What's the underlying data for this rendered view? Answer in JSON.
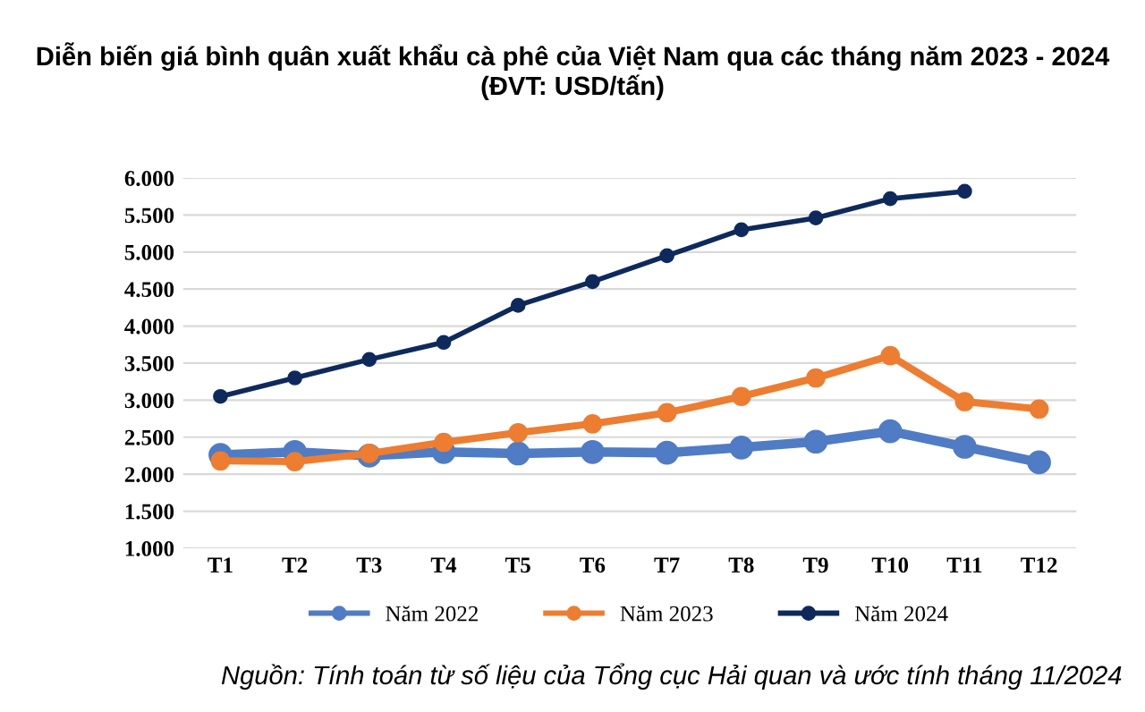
{
  "chart_data": {
    "type": "line",
    "title": "Diễn biến giá bình quân xuất khẩu cà phê của Việt Nam qua các tháng năm 2023 - 2024 (ĐVT: USD/tấn)",
    "categories": [
      "T1",
      "T2",
      "T3",
      "T4",
      "T5",
      "T6",
      "T7",
      "T8",
      "T9",
      "T10",
      "T11",
      "T12"
    ],
    "series": [
      {
        "name": "Năm 2022",
        "color": "#4f7cc4",
        "values": [
          2260,
          2300,
          2250,
          2300,
          2280,
          2300,
          2290,
          2360,
          2440,
          2580,
          2370,
          2160
        ]
      },
      {
        "name": "Năm 2023",
        "color": "#ed7d31",
        "values": [
          2180,
          2170,
          2280,
          2430,
          2560,
          2680,
          2830,
          3050,
          3300,
          3600,
          2980,
          2880
        ]
      },
      {
        "name": "Năm 2024",
        "color": "#0e2a5c",
        "values": [
          3050,
          3300,
          3550,
          3780,
          4280,
          4600,
          4950,
          5300,
          5460,
          5720,
          5820,
          null
        ]
      }
    ],
    "ylim": [
      1000,
      6000
    ],
    "yticks": [
      {
        "value": 1000,
        "label": "1.000"
      },
      {
        "value": 1500,
        "label": "1.500"
      },
      {
        "value": 2000,
        "label": "2.000"
      },
      {
        "value": 2500,
        "label": "2.500"
      },
      {
        "value": 3000,
        "label": "3.000"
      },
      {
        "value": 3500,
        "label": "3.500"
      },
      {
        "value": 4000,
        "label": "4.000"
      },
      {
        "value": 4500,
        "label": "4.500"
      },
      {
        "value": 5000,
        "label": "5.000"
      },
      {
        "value": 5500,
        "label": "5.500"
      },
      {
        "value": 6000,
        "label": "6.000"
      }
    ],
    "grid": "y",
    "legend": "bottom",
    "marker": "circle",
    "line_style": "solid",
    "annotations": [
      "Nguồn: Tính toán từ số liệu của Tổng cục Hải quan và ước tính tháng 11/2024"
    ]
  }
}
